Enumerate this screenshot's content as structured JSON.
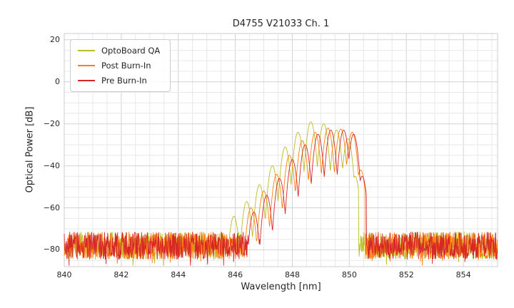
{
  "chart_data": {
    "type": "line",
    "title": "D4755 V21033 Ch. 1",
    "xlabel": "Wavelength [nm]",
    "ylabel": "Optical Power [dB]",
    "xlim": [
      840,
      855.2
    ],
    "ylim": [
      -88,
      23
    ],
    "xticks": [
      840,
      842,
      844,
      846,
      848,
      850,
      852,
      854
    ],
    "yticks": [
      20,
      0,
      -20,
      -40,
      -60,
      -80
    ],
    "ytick_labels": [
      "20",
      "0",
      "−20",
      "−40",
      "−60",
      "−80"
    ],
    "grid": "both: minor 0.5 nm x 5 dB, light gray on white",
    "legend_position": "upper left",
    "noise_floor": {
      "level": -78,
      "spread": 13
    },
    "lobe_sharpness": 420,
    "series": [
      {
        "name": "OptoBoard QA",
        "color": "#bcbd22",
        "signal_range": [
          845.7,
          850.32
        ],
        "peaks": [
          {
            "x": 845.95,
            "y": -64
          },
          {
            "x": 846.4,
            "y": -57
          },
          {
            "x": 846.85,
            "y": -49
          },
          {
            "x": 847.3,
            "y": -40
          },
          {
            "x": 847.75,
            "y": -31
          },
          {
            "x": 848.2,
            "y": -24
          },
          {
            "x": 848.65,
            "y": -19
          },
          {
            "x": 849.1,
            "y": -20
          },
          {
            "x": 849.55,
            "y": -23
          },
          {
            "x": 849.95,
            "y": -27
          },
          {
            "x": 850.2,
            "y": -45
          }
        ]
      },
      {
        "name": "Post Burn-In",
        "color": "#ff7f0e",
        "signal_range": [
          846.2,
          850.55
        ],
        "peaks": [
          {
            "x": 846.55,
            "y": -60
          },
          {
            "x": 847.0,
            "y": -52
          },
          {
            "x": 847.45,
            "y": -44
          },
          {
            "x": 847.9,
            "y": -35
          },
          {
            "x": 848.35,
            "y": -28
          },
          {
            "x": 848.8,
            "y": -24
          },
          {
            "x": 849.25,
            "y": -22
          },
          {
            "x": 849.7,
            "y": -22.5
          },
          {
            "x": 850.1,
            "y": -24
          },
          {
            "x": 850.4,
            "y": -42
          }
        ]
      },
      {
        "name": "Pre Burn-In",
        "color": "#d62728",
        "signal_range": [
          846.3,
          850.6
        ],
        "peaks": [
          {
            "x": 846.65,
            "y": -62
          },
          {
            "x": 847.1,
            "y": -54
          },
          {
            "x": 847.55,
            "y": -46
          },
          {
            "x": 848.0,
            "y": -37
          },
          {
            "x": 848.45,
            "y": -30
          },
          {
            "x": 848.9,
            "y": -25
          },
          {
            "x": 849.35,
            "y": -23
          },
          {
            "x": 849.8,
            "y": -23
          },
          {
            "x": 850.15,
            "y": -25
          },
          {
            "x": 850.45,
            "y": -45
          }
        ]
      }
    ]
  }
}
